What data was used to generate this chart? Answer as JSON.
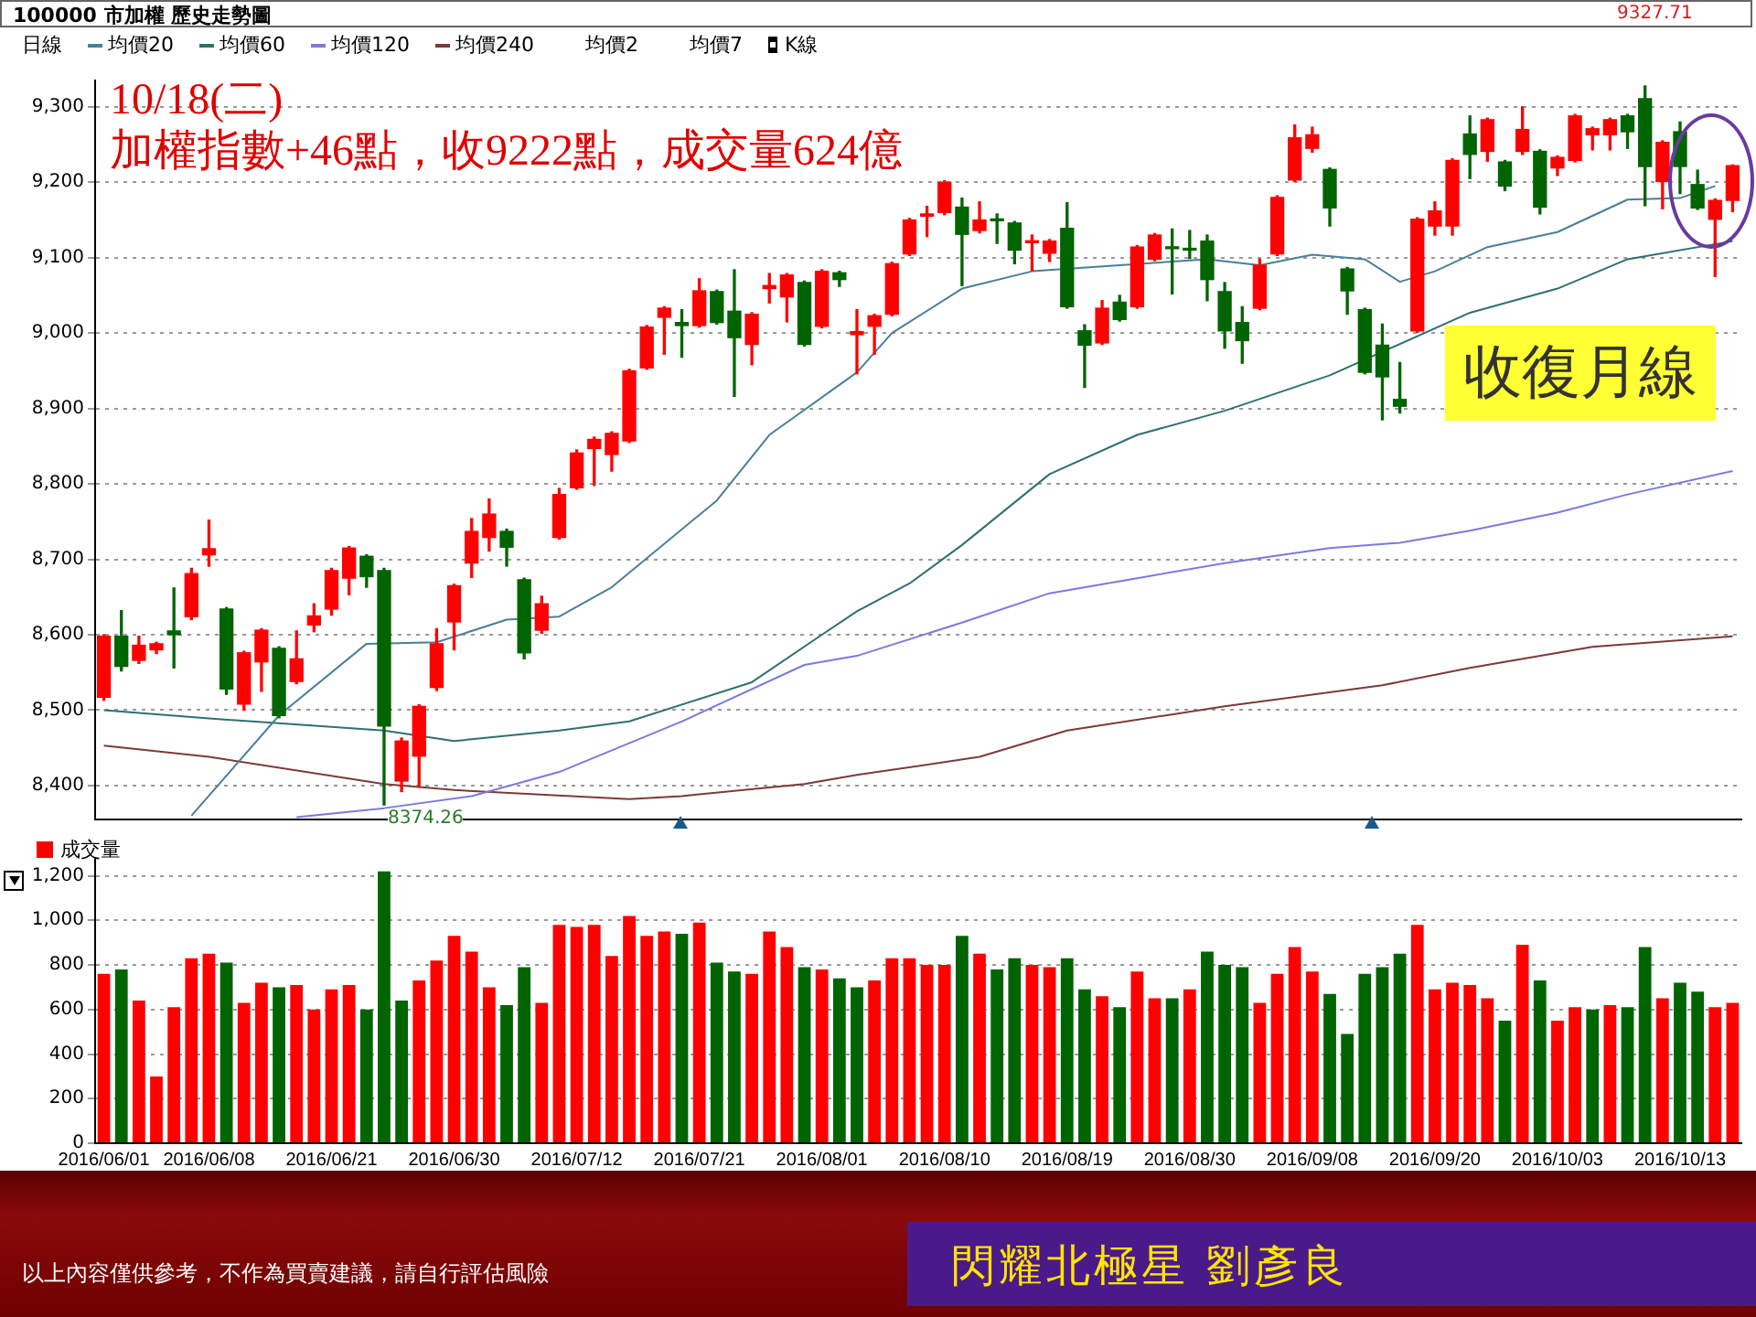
{
  "chart_data": [
    {
      "type": "candlestick",
      "title": "100000 市加權  歷史走勢圖",
      "categories": [
        "2016/06/01",
        null,
        null,
        null,
        null,
        null,
        "2016/06/08",
        null,
        null,
        null,
        null,
        null,
        null,
        "2016/06/21",
        null,
        null,
        null,
        null,
        null,
        null,
        "2016/06/30",
        null,
        null,
        null,
        null,
        null,
        null,
        "2016/07/12",
        null,
        null,
        null,
        null,
        null,
        null,
        "2016/07/21",
        null,
        null,
        null,
        null,
        null,
        null,
        "2016/08/01",
        null,
        null,
        null,
        null,
        null,
        null,
        "2016/08/10",
        null,
        null,
        null,
        null,
        null,
        null,
        "2016/08/19",
        null,
        null,
        null,
        null,
        null,
        null,
        "2016/08/30",
        null,
        null,
        null,
        null,
        null,
        null,
        "2016/09/08",
        null,
        null,
        null,
        null,
        null,
        null,
        "2016/09/20",
        null,
        null,
        null,
        null,
        null,
        null,
        "2016/10/03",
        null,
        null,
        null,
        null,
        null,
        null,
        "2016/10/13",
        null,
        null,
        null
      ],
      "ohlc": [
        [
          8517,
          8600,
          8513,
          8598
        ],
        [
          8598,
          8632,
          8552,
          8558
        ],
        [
          8566,
          8598,
          8562,
          8586
        ],
        [
          8580,
          8590,
          8575,
          8588
        ],
        [
          8605,
          8662,
          8556,
          8600
        ],
        [
          8624,
          8688,
          8620,
          8681
        ],
        [
          8706,
          8752,
          8691,
          8714
        ],
        [
          8634,
          8636,
          8521,
          8528
        ],
        [
          8508,
          8578,
          8500,
          8576
        ],
        [
          8564,
          8608,
          8525,
          8606
        ],
        [
          8582,
          8584,
          8490,
          8493
        ],
        [
          8538,
          8605,
          8535,
          8568
        ],
        [
          8613,
          8641,
          8604,
          8625
        ],
        [
          8634,
          8688,
          8626,
          8685
        ],
        [
          8675,
          8717,
          8653,
          8715
        ],
        [
          8704,
          8706,
          8663,
          8677
        ],
        [
          8685,
          8688,
          8374.26,
          8479
        ],
        [
          8406,
          8463,
          8392,
          8459
        ],
        [
          8439,
          8507,
          8398,
          8505
        ],
        [
          8530,
          8608,
          8526,
          8588
        ],
        [
          8617,
          8667,
          8580,
          8665
        ],
        [
          8695,
          8754,
          8676,
          8737
        ],
        [
          8729,
          8780,
          8711,
          8760
        ],
        [
          8737,
          8740,
          8691,
          8716
        ],
        [
          8673,
          8675,
          8568,
          8576
        ],
        [
          8606,
          8651,
          8602,
          8641
        ],
        [
          8729,
          8794,
          8727,
          8786
        ],
        [
          8795,
          8845,
          8793,
          8841
        ],
        [
          8847,
          8862,
          8798,
          8859
        ],
        [
          8839,
          8869,
          8817,
          8867
        ],
        [
          8857,
          8952,
          8855,
          8950
        ],
        [
          8954,
          9010,
          8952,
          9008
        ],
        [
          9021,
          9035,
          8972,
          9033
        ],
        [
          9014,
          9031,
          8968,
          9010
        ],
        [
          9010,
          9072,
          9008,
          9056
        ],
        [
          9055,
          9057,
          9012,
          9014
        ],
        [
          9029,
          9084,
          8916,
          8994
        ],
        [
          8985,
          9027,
          8958,
          9025
        ],
        [
          9059,
          9079,
          9040,
          9063
        ],
        [
          9048,
          9079,
          9015,
          9077
        ],
        [
          9067,
          9069,
          8983,
          8985
        ],
        [
          9009,
          9084,
          9007,
          9082
        ],
        [
          9080,
          9082,
          9062,
          9071
        ],
        [
          8998,
          9031,
          8946,
          9002
        ],
        [
          9009,
          9025,
          8972,
          9023
        ],
        [
          9025,
          9094,
          9023,
          9092
        ],
        [
          9105,
          9152,
          9103,
          9150
        ],
        [
          9155,
          9168,
          9128,
          9158
        ],
        [
          9160,
          9202,
          9157,
          9200
        ],
        [
          9167,
          9179,
          9063,
          9131
        ],
        [
          9136,
          9174,
          9133,
          9150
        ],
        [
          9151,
          9158,
          9119,
          9149
        ],
        [
          9146,
          9148,
          9092,
          9110
        ],
        [
          9120,
          9130,
          9083,
          9121
        ],
        [
          9106,
          9124,
          9095,
          9122
        ],
        [
          9139,
          9173,
          9033,
          9035
        ],
        [
          9003,
          9011,
          8928,
          8984
        ],
        [
          8987,
          9043,
          8985,
          9033
        ],
        [
          9041,
          9050,
          9016,
          9018
        ],
        [
          9035,
          9116,
          9033,
          9114
        ],
        [
          9098,
          9132,
          9096,
          9130
        ],
        [
          9114,
          9138,
          9052,
          9112
        ],
        [
          9111,
          9136,
          9099,
          9110
        ],
        [
          9122,
          9130,
          9043,
          9071
        ],
        [
          9055,
          9067,
          8980,
          9003
        ],
        [
          9014,
          9035,
          8960,
          8990
        ],
        [
          9033,
          9098,
          9031,
          9090
        ],
        [
          9105,
          9182,
          9103,
          9180
        ],
        [
          9203,
          9276,
          9201,
          9259
        ],
        [
          9245,
          9273,
          9240,
          9263
        ],
        [
          9217,
          9219,
          9142,
          9166
        ],
        [
          9085,
          9087,
          9025,
          9056
        ],
        [
          9031,
          9033,
          8946,
          8948
        ],
        [
          8984,
          9012,
          8885,
          8942
        ],
        [
          8912,
          8961,
          8894,
          8903
        ],
        [
          9003,
          9153,
          9001,
          9151
        ],
        [
          9142,
          9174,
          9130,
          9162
        ],
        [
          9142,
          9231,
          9130,
          9229
        ],
        [
          9264,
          9288,
          9205,
          9237
        ],
        [
          9241,
          9285,
          9228,
          9283
        ],
        [
          9227,
          9229,
          9189,
          9195
        ],
        [
          9241,
          9300,
          9237,
          9270
        ],
        [
          9241,
          9243,
          9158,
          9167
        ],
        [
          9219,
          9235,
          9209,
          9233
        ],
        [
          9229,
          9290,
          9227,
          9288
        ],
        [
          9263,
          9273,
          9243,
          9271
        ],
        [
          9263,
          9285,
          9243,
          9283
        ],
        [
          9288,
          9290,
          9245,
          9267
        ],
        [
          9311,
          9327.71,
          9169,
          9221
        ],
        [
          9201,
          9255,
          9165,
          9253
        ],
        [
          9267,
          9280,
          9185,
          9221
        ],
        [
          9197,
          9216,
          9164,
          9166
        ],
        [
          9151,
          9178,
          9075,
          9176
        ],
        [
          9176,
          9223,
          9161,
          9222
        ]
      ],
      "colors": [
        "#ff0000",
        "#006400",
        "#ff0000",
        "#ff0000",
        "#006400",
        "#ff0000",
        "#ff0000",
        "#006400",
        "#ff0000",
        "#ff0000",
        "#006400",
        "#ff0000",
        "#ff0000",
        "#ff0000",
        "#ff0000",
        "#006400",
        "#006400",
        "#ff0000",
        "#ff0000",
        "#ff0000",
        "#ff0000",
        "#ff0000",
        "#ff0000",
        "#006400",
        "#006400",
        "#ff0000",
        "#ff0000",
        "#ff0000",
        "#ff0000",
        "#ff0000",
        "#ff0000",
        "#ff0000",
        "#ff0000",
        "#006400",
        "#ff0000",
        "#006400",
        "#006400",
        "#ff0000",
        "#ff0000",
        "#ff0000",
        "#006400",
        "#ff0000",
        "#006400",
        "#ff0000",
        "#ff0000",
        "#ff0000",
        "#ff0000",
        "#ff0000",
        "#ff0000",
        "#006400",
        "#ff0000",
        "#006400",
        "#006400",
        "#ff0000",
        "#ff0000",
        "#006400",
        "#006400",
        "#ff0000",
        "#006400",
        "#ff0000",
        "#ff0000",
        "#006400",
        "#006400",
        "#006400",
        "#006400",
        "#006400",
        "#ff0000",
        "#ff0000",
        "#ff0000",
        "#ff0000",
        "#006400",
        "#006400",
        "#006400",
        "#006400",
        "#006400",
        "#ff0000",
        "#ff0000",
        "#ff0000",
        "#006400",
        "#ff0000",
        "#006400",
        "#ff0000",
        "#006400",
        "#ff0000",
        "#ff0000",
        "#ff0000",
        "#ff0000",
        "#006400",
        "#006400",
        "#ff0000",
        "#006400",
        "#006400",
        "#ff0000",
        "#ff0000"
      ],
      "series": [
        {
          "name": "均價20",
          "type": "line",
          "color": "#4a7f99",
          "values": [
            null,
            null,
            null,
            null,
            null,
            8360,
            null,
            null,
            null,
            null,
            8493,
            null,
            null,
            null,
            null,
            8588,
            null,
            null,
            null,
            8590,
            null,
            null,
            null,
            8620,
            null,
            null,
            8624,
            null,
            null,
            8663,
            null,
            null,
            null,
            null,
            null,
            8778,
            null,
            null,
            8865,
            null,
            null,
            null,
            null,
            8948,
            null,
            9000,
            null,
            null,
            null,
            9059,
            null,
            null,
            null,
            9082,
            null,
            null,
            null,
            null,
            null,
            null,
            null,
            null,
            null,
            9098,
            null,
            null,
            9090,
            null,
            null,
            9104,
            null,
            null,
            9098,
            null,
            9068,
            null,
            9082,
            null,
            null,
            9114,
            null,
            null,
            null,
            9134,
            null,
            null,
            null,
            9177,
            null,
            null,
            9179,
            null,
            9195,
            null
          ]
        },
        {
          "name": "均價60",
          "type": "line",
          "color": "#2f7070",
          "values": [
            8500,
            null,
            null,
            null,
            null,
            null,
            8489,
            null,
            null,
            null,
            null,
            null,
            null,
            null,
            null,
            null,
            8473,
            null,
            null,
            null,
            8459,
            null,
            null,
            null,
            null,
            null,
            8473,
            null,
            null,
            null,
            8485,
            null,
            null,
            null,
            null,
            null,
            null,
            8537,
            null,
            null,
            null,
            8600,
            null,
            8631,
            null,
            null,
            8668,
            null,
            null,
            8719,
            null,
            null,
            null,
            null,
            8813,
            null,
            null,
            null,
            null,
            8865,
            null,
            null,
            null,
            null,
            8897,
            null,
            null,
            null,
            null,
            null,
            8944,
            null,
            null,
            null,
            null,
            null,
            null,
            null,
            9027,
            null,
            null,
            null,
            null,
            9059,
            null,
            null,
            null,
            9098,
            null,
            null,
            null,
            null,
            null,
            9122
          ]
        },
        {
          "name": "均價120",
          "type": "line",
          "color": "#7b7bdc",
          "values": [
            null,
            null,
            null,
            null,
            null,
            null,
            null,
            null,
            null,
            null,
            null,
            8358,
            null,
            null,
            null,
            null,
            8370,
            null,
            null,
            null,
            null,
            8386,
            null,
            null,
            null,
            null,
            8418,
            null,
            null,
            null,
            null,
            null,
            null,
            8485,
            null,
            null,
            null,
            null,
            null,
            null,
            8560,
            null,
            null,
            8572,
            null,
            null,
            null,
            null,
            null,
            8616,
            null,
            null,
            null,
            null,
            8655,
            null,
            null,
            null,
            null,
            8675,
            null,
            null,
            null,
            null,
            8695,
            null,
            null,
            null,
            null,
            null,
            8715,
            null,
            null,
            null,
            8722,
            null,
            null,
            null,
            8738,
            null,
            null,
            null,
            null,
            8762,
            null,
            null,
            null,
            8786,
            null,
            null,
            null,
            null,
            null,
            8817
          ]
        },
        {
          "name": "均價240",
          "type": "line",
          "color": "#7a3b3b",
          "values": [
            8453,
            null,
            null,
            null,
            null,
            null,
            8438,
            null,
            null,
            null,
            null,
            null,
            null,
            null,
            null,
            null,
            8402,
            null,
            null,
            null,
            8394,
            null,
            null,
            null,
            null,
            null,
            null,
            null,
            null,
            null,
            8382,
            null,
            null,
            8386,
            null,
            null,
            null,
            null,
            null,
            null,
            8402,
            null,
            null,
            8414,
            null,
            null,
            null,
            null,
            null,
            null,
            8438,
            null,
            null,
            null,
            null,
            8473,
            null,
            null,
            null,
            null,
            null,
            null,
            null,
            null,
            8505,
            null,
            null,
            null,
            null,
            null,
            null,
            null,
            null,
            8533,
            null,
            null,
            null,
            null,
            8556,
            null,
            null,
            null,
            null,
            null,
            null,
            8584,
            null,
            null,
            null,
            null,
            null,
            null,
            null,
            8598
          ]
        }
      ],
      "ylim": [
        8355,
        9335
      ],
      "yticks": [
        {
          "value": 8400,
          "label": "8,400"
        },
        {
          "value": 8500,
          "label": "8,500"
        },
        {
          "value": 8600,
          "label": "8,600"
        },
        {
          "value": 8700,
          "label": "8,700"
        },
        {
          "value": 8800,
          "label": "8,800"
        },
        {
          "value": 8900,
          "label": "8,900"
        },
        {
          "value": 9000,
          "label": "9,000"
        },
        {
          "value": 9100,
          "label": "9,100"
        },
        {
          "value": 9200,
          "label": "9,200"
        },
        {
          "value": 9300,
          "label": "9,300"
        }
      ],
      "grid": "y",
      "legend": "top left",
      "tick_labels": "y",
      "annotations": [
        "日線",
        "均價2",
        "均價7",
        "K線",
        "10/18(二)",
        "加權指數+46點，收9222點，成交量624億",
        "收復月線",
        "8374.26",
        "9327.71"
      ]
    },
    {
      "type": "bar",
      "categories": [
        "2016/06/01",
        null,
        null,
        null,
        null,
        null,
        "2016/06/08",
        null,
        null,
        null,
        null,
        null,
        null,
        "2016/06/21",
        null,
        null,
        null,
        null,
        null,
        null,
        "2016/06/30",
        null,
        null,
        null,
        null,
        null,
        null,
        "2016/07/12",
        null,
        null,
        null,
        null,
        null,
        null,
        "2016/07/21",
        null,
        null,
        null,
        null,
        null,
        null,
        "2016/08/01",
        null,
        null,
        null,
        null,
        null,
        null,
        "2016/08/10",
        null,
        null,
        null,
        null,
        null,
        null,
        "2016/08/19",
        null,
        null,
        null,
        null,
        null,
        null,
        "2016/08/30",
        null,
        null,
        null,
        null,
        null,
        null,
        "2016/09/08",
        null,
        null,
        null,
        null,
        null,
        null,
        "2016/09/20",
        null,
        null,
        null,
        null,
        null,
        null,
        "2016/10/03",
        null,
        null,
        null,
        null,
        null,
        null,
        "2016/10/13",
        null,
        null,
        null
      ],
      "series": [
        {
          "name": "成交量",
          "color": "#ff0000",
          "colors": [
            "#ff0000",
            "#006400",
            "#ff0000",
            "#ff0000",
            "#ff0000",
            "#ff0000",
            "#ff0000",
            "#006400",
            "#ff0000",
            "#ff0000",
            "#006400",
            "#ff0000",
            "#ff0000",
            "#ff0000",
            "#ff0000",
            "#006400",
            "#006400",
            "#006400",
            "#ff0000",
            "#ff0000",
            "#ff0000",
            "#ff0000",
            "#ff0000",
            "#006400",
            "#006400",
            "#ff0000",
            "#ff0000",
            "#ff0000",
            "#ff0000",
            "#ff0000",
            "#ff0000",
            "#ff0000",
            "#ff0000",
            "#006400",
            "#ff0000",
            "#006400",
            "#006400",
            "#ff0000",
            "#ff0000",
            "#ff0000",
            "#006400",
            "#ff0000",
            "#006400",
            "#006400",
            "#ff0000",
            "#ff0000",
            "#ff0000",
            "#ff0000",
            "#ff0000",
            "#006400",
            "#ff0000",
            "#006400",
            "#006400",
            "#ff0000",
            "#ff0000",
            "#006400",
            "#006400",
            "#ff0000",
            "#006400",
            "#ff0000",
            "#ff0000",
            "#006400",
            "#ff0000",
            "#006400",
            "#006400",
            "#006400",
            "#ff0000",
            "#ff0000",
            "#ff0000",
            "#ff0000",
            "#006400",
            "#006400",
            "#006400",
            "#006400",
            "#006400",
            "#ff0000",
            "#ff0000",
            "#ff0000",
            "#ff0000",
            "#ff0000",
            "#006400",
            "#ff0000",
            "#006400",
            "#ff0000",
            "#ff0000",
            "#006400",
            "#ff0000",
            "#006400",
            "#006400",
            "#ff0000",
            "#006400",
            "#006400",
            "#ff0000",
            "#ff0000"
          ],
          "values": [
            760,
            780,
            640,
            300,
            610,
            830,
            850,
            810,
            630,
            720,
            700,
            710,
            600,
            690,
            710,
            600,
            1220,
            640,
            730,
            820,
            930,
            860,
            700,
            620,
            790,
            630,
            980,
            970,
            980,
            840,
            1020,
            930,
            950,
            940,
            990,
            810,
            770,
            760,
            950,
            880,
            790,
            780,
            740,
            700,
            730,
            830,
            830,
            800,
            800,
            930,
            850,
            780,
            830,
            800,
            790,
            830,
            690,
            660,
            610,
            770,
            650,
            650,
            690,
            860,
            800,
            790,
            630,
            760,
            880,
            770,
            670,
            490,
            760,
            790,
            850,
            980,
            690,
            720,
            710,
            650,
            550,
            890,
            730,
            550,
            610,
            600,
            620,
            610,
            880,
            650,
            720,
            680,
            610,
            630
          ]
        }
      ],
      "ylim": [
        0,
        1280
      ],
      "yticks": [
        0,
        200,
        400,
        600,
        800,
        {
          "value": 1000,
          "label": "1,000"
        },
        {
          "value": 1200,
          "label": "1,200"
        }
      ],
      "grid": "y",
      "legend": "top left",
      "annotations": [
        "以上內容僅供參考，不作為買賣建議，請自行評估風險",
        "閃耀北極星 劉彥良"
      ]
    }
  ]
}
